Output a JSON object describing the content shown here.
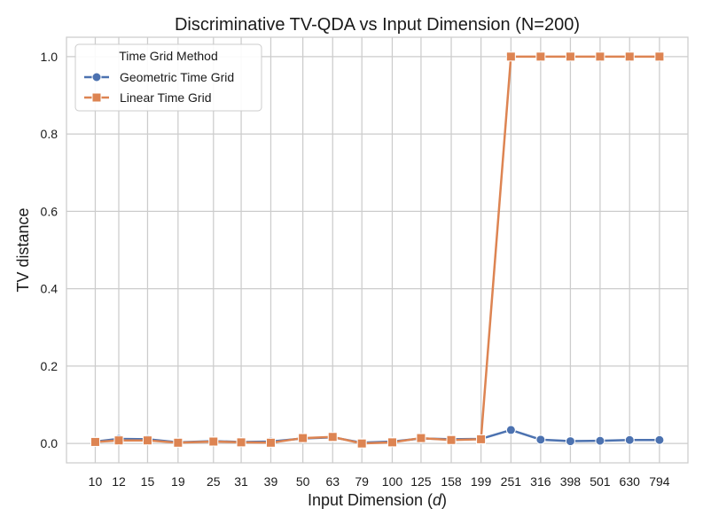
{
  "chart_data": {
    "type": "line",
    "title": "Discriminative TV-QDA vs Input Dimension (N=200)",
    "xlabel_prefix": "Input Dimension (",
    "xlabel_var": "d",
    "xlabel_suffix": ")",
    "ylabel": "TV distance",
    "x_scale": "log",
    "xlim": [
      8.0,
      990.0
    ],
    "ylim": [
      -0.05,
      1.05
    ],
    "yticks": [
      0.0,
      0.2,
      0.4,
      0.6,
      0.8,
      1.0
    ],
    "ytick_labels": [
      "0.0",
      "0.2",
      "0.4",
      "0.6",
      "0.8",
      "1.0"
    ],
    "x": [
      10,
      12,
      15,
      19,
      25,
      31,
      39,
      50,
      63,
      79,
      100,
      125,
      158,
      199,
      251,
      316,
      398,
      501,
      630,
      794
    ],
    "xtick_labels": [
      "10",
      "12",
      "15",
      "19",
      "25",
      "31",
      "39",
      "50",
      "63",
      "79",
      "100",
      "125",
      "158",
      "199",
      "251",
      "316",
      "398",
      "501",
      "630",
      "794"
    ],
    "legend": {
      "title": "Time Grid Method",
      "position": "top-left"
    },
    "grid": true,
    "series": [
      {
        "name": "Geometric Time Grid",
        "color": "#4c72b0",
        "marker": "circle",
        "values": [
          0.005,
          0.012,
          0.011,
          0.003,
          0.006,
          0.004,
          0.005,
          0.013,
          0.016,
          0.002,
          0.005,
          0.013,
          0.011,
          0.012,
          0.035,
          0.01,
          0.006,
          0.007,
          0.009,
          0.009
        ]
      },
      {
        "name": "Linear Time Grid",
        "color": "#dd8452",
        "marker": "square",
        "values": [
          0.004,
          0.008,
          0.008,
          0.002,
          0.005,
          0.003,
          0.002,
          0.014,
          0.017,
          0.0,
          0.003,
          0.014,
          0.009,
          0.011,
          1.0,
          1.0,
          1.0,
          1.0,
          1.0,
          1.0
        ]
      }
    ]
  }
}
